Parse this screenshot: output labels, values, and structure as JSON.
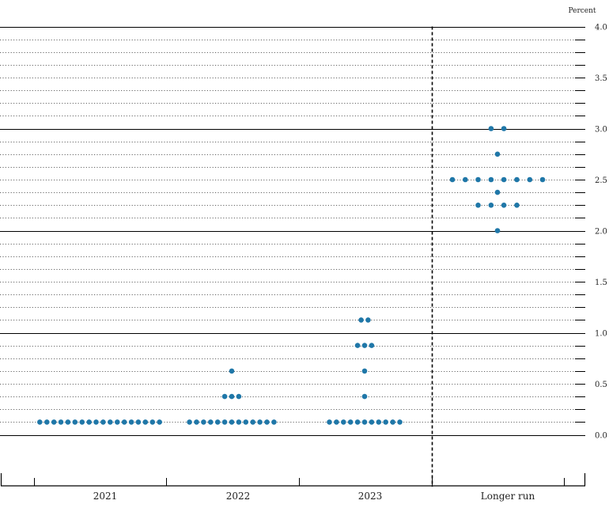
{
  "chart_data": {
    "type": "scatter",
    "title": "",
    "unit_label": "Percent",
    "xlabel": "",
    "ylabel": "",
    "ylim": [
      0,
      4
    ],
    "yticks": [
      {
        "value": 0,
        "label": "0.0"
      },
      {
        "value": 0.5,
        "label": "0.5"
      },
      {
        "value": 1,
        "label": "1.0"
      },
      {
        "value": 1.5,
        "label": "1.5"
      },
      {
        "value": 2,
        "label": "2.0"
      },
      {
        "value": 2.5,
        "label": "2.5"
      },
      {
        "value": 3,
        "label": "3.0"
      },
      {
        "value": 3.5,
        "label": "3.5"
      },
      {
        "value": 4,
        "label": "4.0"
      }
    ],
    "grid": true,
    "categories": [
      "2021",
      "2022",
      "2023",
      "Longer run"
    ],
    "groups": [
      {
        "category": "2021",
        "points": [
          {
            "y": 0.125,
            "count": 18
          }
        ]
      },
      {
        "category": "2022",
        "points": [
          {
            "y": 0.125,
            "count": 13
          },
          {
            "y": 0.375,
            "count": 3
          },
          {
            "y": 0.625,
            "count": 1
          }
        ]
      },
      {
        "category": "2023",
        "points": [
          {
            "y": 0.125,
            "count": 11
          },
          {
            "y": 0.375,
            "count": 1
          },
          {
            "y": 0.625,
            "count": 1
          },
          {
            "y": 0.875,
            "count": 3
          },
          {
            "y": 1.125,
            "count": 2
          }
        ]
      },
      {
        "category": "Longer run",
        "points": [
          {
            "y": 2.0,
            "count": 1
          },
          {
            "y": 2.25,
            "count": 4
          },
          {
            "y": 2.375,
            "count": 1
          },
          {
            "y": 2.5,
            "count": 8
          },
          {
            "y": 2.75,
            "count": 1
          },
          {
            "y": 3.0,
            "count": 2
          }
        ]
      }
    ],
    "divider_after": "2023",
    "colors": {
      "dot": "#1f77a8",
      "axis": "#000000",
      "grid": "#555555"
    }
  }
}
